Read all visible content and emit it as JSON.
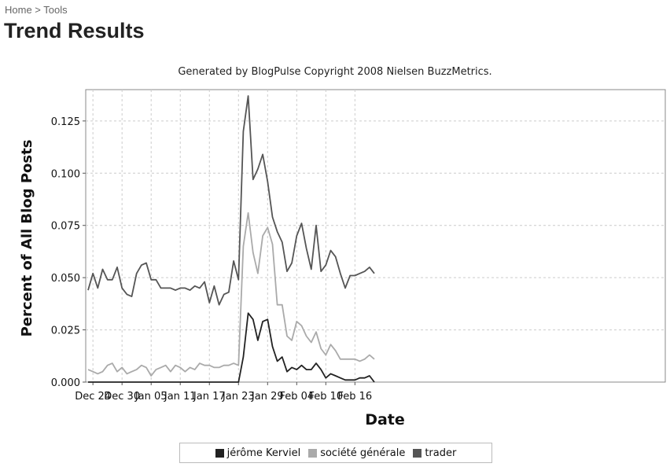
{
  "breadcrumb": {
    "home": "Home",
    "separator": " > ",
    "tools": "Tools"
  },
  "page_title": "Trend Results",
  "chart_data": {
    "type": "line",
    "title": "Generated by BlogPulse Copyright 2008 Nielsen BuzzMetrics.",
    "xlabel": "Date",
    "ylabel": "Percent of All Blog Posts",
    "ylim": [
      0,
      0.14
    ],
    "y_ticks": [
      "0.000",
      "0.025",
      "0.050",
      "0.075",
      "0.100",
      "0.125"
    ],
    "x_ticks": [
      "Dec 24",
      "Dec 30",
      "Jan 05",
      "Jan 11",
      "Jan 17",
      "Jan 23",
      "Jan 29",
      "Feb 04",
      "Feb 10",
      "Feb 16"
    ],
    "x_start_date": "Dec 23",
    "grid": true,
    "legend_position": "bottom",
    "series": [
      {
        "name": "trader",
        "color": "#555555",
        "values": [
          0.044,
          0.052,
          0.045,
          0.054,
          0.049,
          0.049,
          0.055,
          0.045,
          0.042,
          0.041,
          0.052,
          0.056,
          0.057,
          0.049,
          0.049,
          0.045,
          0.045,
          0.045,
          0.044,
          0.045,
          0.045,
          0.044,
          0.046,
          0.045,
          0.048,
          0.038,
          0.046,
          0.037,
          0.042,
          0.043,
          0.058,
          0.049,
          0.12,
          0.137,
          0.097,
          0.102,
          0.109,
          0.096,
          0.079,
          0.072,
          0.067,
          0.053,
          0.057,
          0.07,
          0.076,
          0.064,
          0.054,
          0.075,
          0.053,
          0.056,
          0.063,
          0.06,
          0.052,
          0.045,
          0.051,
          0.051,
          0.052,
          0.053,
          0.055,
          0.052
        ]
      },
      {
        "name": "société générale",
        "color": "#aaaaaa",
        "values": [
          0.006,
          0.005,
          0.004,
          0.005,
          0.008,
          0.009,
          0.005,
          0.007,
          0.004,
          0.005,
          0.006,
          0.008,
          0.007,
          0.003,
          0.006,
          0.007,
          0.008,
          0.005,
          0.008,
          0.007,
          0.005,
          0.007,
          0.006,
          0.009,
          0.008,
          0.008,
          0.007,
          0.007,
          0.008,
          0.008,
          0.009,
          0.008,
          0.065,
          0.081,
          0.062,
          0.052,
          0.07,
          0.074,
          0.066,
          0.037,
          0.037,
          0.022,
          0.02,
          0.029,
          0.027,
          0.022,
          0.019,
          0.024,
          0.016,
          0.013,
          0.018,
          0.015,
          0.011,
          0.011,
          0.011,
          0.011,
          0.01,
          0.011,
          0.013,
          0.011
        ]
      },
      {
        "name": "jérôme Kerviel",
        "color": "#222222",
        "values": [
          0,
          0,
          0,
          0,
          0,
          0,
          0,
          0,
          0,
          0,
          0,
          0,
          0,
          0,
          0,
          0,
          0,
          0,
          0,
          0,
          0,
          0,
          0,
          0,
          0,
          0,
          0,
          0,
          0,
          0,
          0,
          0,
          0.012,
          0.033,
          0.03,
          0.02,
          0.029,
          0.03,
          0.017,
          0.01,
          0.012,
          0.005,
          0.007,
          0.006,
          0.008,
          0.006,
          0.006,
          0.009,
          0.006,
          0.002,
          0.004,
          0.003,
          0.002,
          0.001,
          0.001,
          0.001,
          0.002,
          0.002,
          0.003,
          0
        ]
      }
    ],
    "legend_order": [
      "jérôme Kerviel",
      "société générale",
      "trader"
    ]
  }
}
